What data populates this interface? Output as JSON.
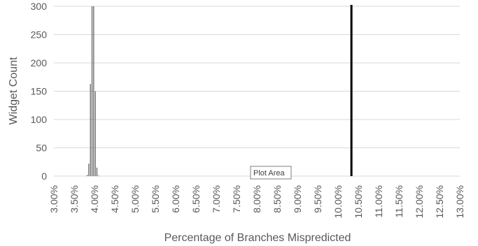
{
  "chart_data": {
    "type": "bar",
    "ylabel": "Widget Count",
    "xlabel": "Percentage of Branches Mispredicted",
    "xlim": [
      3.0,
      13.0
    ],
    "ylim": [
      0,
      300
    ],
    "y_ticks": [
      0,
      50,
      100,
      150,
      200,
      250,
      300
    ],
    "x_ticks": [
      "3.00%",
      "3.50%",
      "4.00%",
      "4.50%",
      "5.00%",
      "5.50%",
      "6.00%",
      "6.50%",
      "7.00%",
      "7.50%",
      "8.00%",
      "8.50%",
      "9.00%",
      "9.50%",
      "10.00%",
      "10.50%",
      "11.00%",
      "11.50%",
      "12.00%",
      "12.50%",
      "13.00%"
    ],
    "grid": "horizontal",
    "series": [
      {
        "x": [
          3.82,
          3.86,
          3.9,
          3.94,
          3.98,
          4.02,
          4.06,
          4.1
        ],
        "values": [
          2,
          22,
          163,
          300,
          300,
          150,
          15,
          1
        ],
        "color": "#595959"
      }
    ],
    "reference_line": {
      "x": 10.33,
      "color": "#000000"
    },
    "tooltip": "Plot Area",
    "colors": {
      "gridline": "#d9d9d9",
      "axis_text": "#595959",
      "bar": "#595959"
    }
  }
}
